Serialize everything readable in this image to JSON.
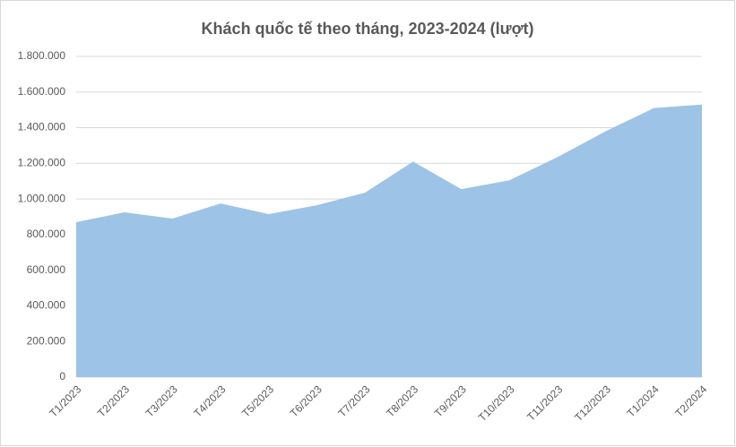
{
  "chart_data": {
    "type": "area",
    "title": "Khách quốc tế theo tháng, 2023-2024 (lượt)",
    "categories": [
      "T1/2023",
      "T2/2023",
      "T3/2023",
      "T4/2023",
      "T5/2023",
      "T6/2023",
      "T7/2023",
      "T8/2023",
      "T9/2023",
      "T10/2023",
      "T11/2023",
      "T12/2023",
      "T1/2024",
      "T2/2024"
    ],
    "values": [
      870000,
      925000,
      890000,
      975000,
      915000,
      965000,
      1035000,
      1210000,
      1055000,
      1105000,
      1235000,
      1380000,
      1510000,
      1530000
    ],
    "color": "#9dc3e6",
    "ylim": [
      0,
      1800000
    ],
    "yticks": [
      0,
      {
        "value": 200000,
        "label": "200.000"
      },
      {
        "value": 400000,
        "label": "400.000"
      },
      {
        "value": 600000,
        "label": "600.000"
      },
      {
        "value": 800000,
        "label": "800.000"
      },
      {
        "value": 1000000,
        "label": "1.000.000"
      },
      {
        "value": 1200000,
        "label": "1.200.000"
      },
      {
        "value": 1400000,
        "label": "1.400.000"
      },
      {
        "value": 1600000,
        "label": "1.600.000"
      },
      {
        "value": 1800000,
        "label": "1.800.000"
      }
    ],
    "grid": true
  }
}
